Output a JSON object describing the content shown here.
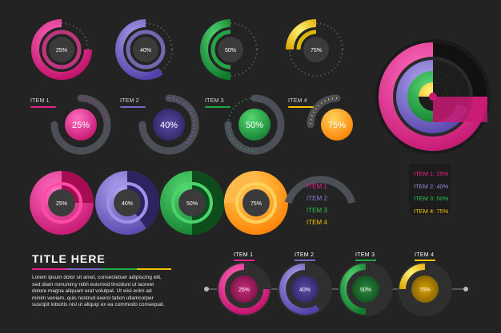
{
  "colors": {
    "pink": "#e8208a",
    "purple": "#7c68c8",
    "green": "#1faa45",
    "yellow": "#f5c400",
    "orange": "#ff9a1a",
    "background": "#232323",
    "dark_circle": "#3b3b3b",
    "track": "#4c4f57"
  },
  "row1": {
    "values": [
      "25%",
      "40%",
      "50%",
      "75%"
    ]
  },
  "row2": {
    "labels": [
      "ITEM 1",
      "ITEM 2",
      "ITEM 3",
      "ITEM 4"
    ],
    "values": [
      "25%",
      "40%",
      "50%",
      "75%"
    ]
  },
  "row3": {
    "values": [
      "25%",
      "40%",
      "50%",
      "75%"
    ],
    "legend": [
      "ITEM 1",
      "ITEM 2",
      "ITEM 3",
      "ITEM 4"
    ]
  },
  "right_legend": [
    "ITEM 1: 25%",
    "ITEM 2: 40%",
    "ITEM 3: 50%",
    "ITEM 4: 75%"
  ],
  "title_block": {
    "title": "TITLE HERE",
    "body": "Lorem ipsum dolor sit amet, consectetuer adipiscing elit,\nsed diam nonummy nibh euismod tincidunt ut laoreet\ndolore magna aliquam erat volutpat. Ut wisi enim ad\nminim veniam, quis nostrud exerci tation ullamcorper\nsuscipit lobortis nisl ut aliquip ex ea commodo consequat."
  },
  "bottom_row": {
    "labels": [
      "ITEM 1",
      "ITEM 2",
      "ITEM 3",
      "ITEM 4"
    ],
    "values": [
      "25%",
      "40%",
      "50%",
      "75%"
    ]
  }
}
